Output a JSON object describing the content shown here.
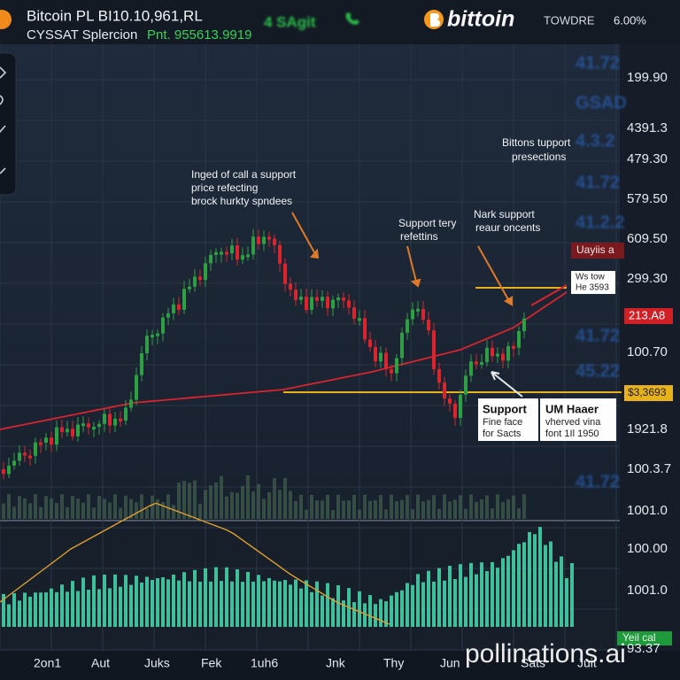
{
  "header": {
    "title": "Bitcoin PL BI10.10,961,RL",
    "subtitle": "CYSSAT Splercion",
    "price": "Pnt. 955613.9919",
    "signal": "4 SAgit",
    "brand": "bittoin",
    "menu": "TOWDRE",
    "change": "6.00%"
  },
  "price_axis": [
    "199.90",
    "4391.3",
    "479.30",
    "579.50",
    "609.50",
    "299.30",
    "100.70",
    "1921.8",
    "100.3.7",
    "1001.0"
  ],
  "ghost_axis": [
    "41.72",
    "GSAD",
    "4.3.2",
    "41.72",
    "41.2.2",
    "41.72",
    "45.22",
    "41.72"
  ],
  "lower_axis": [
    "100.00",
    "1001.0",
    "93.37"
  ],
  "badges": {
    "red_top": "Uayiis a",
    "white": [
      "Ws tow",
      "He 3593"
    ],
    "red": "213.A8",
    "yellow": "$3,3693",
    "green": "Yeil cal"
  },
  "annotations": [
    [
      "Inged of call a support",
      "price refecting",
      "brock hurkty spndees"
    ],
    [
      "Support tery",
      "refettins"
    ],
    [
      "Nark support",
      "reaur oncents"
    ],
    [
      "Bittons tupport",
      "presections"
    ]
  ],
  "callouts": [
    [
      "Support",
      "Fine face",
      "for Sacts"
    ],
    [
      "UM Haaer",
      "vherved vina",
      "font 1Il 1950"
    ]
  ],
  "time_axis": [
    "2on1",
    "Aut",
    "Juks",
    "Fek",
    "1uh6",
    "Jnk",
    "Thy",
    "Jun",
    "Sats",
    "Juit"
  ],
  "watermark": "pollinations.ai"
}
